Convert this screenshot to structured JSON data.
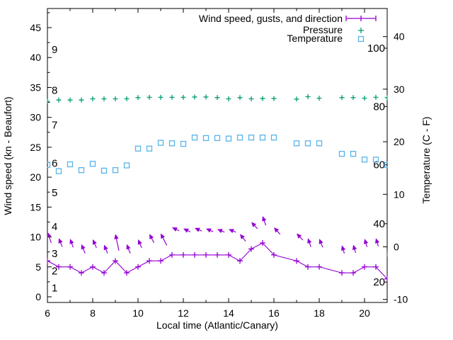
{
  "page": {
    "background": "#ffffff"
  },
  "chart_data": {
    "type": "line",
    "title": "",
    "x_label": "Local time (Atlantic/Canary)",
    "y_left_label": "Wind speed (kn - Beaufort)",
    "y_right_label": "Temperature (C - F)",
    "legend": {
      "wind": "Wind speed, gusts, and direction",
      "pressure": "Pressure",
      "temperature": "Temperature"
    },
    "legend_position": "top-right-inside",
    "grid": false,
    "colors": {
      "wind": "#9400D3",
      "pressure": "#009E73",
      "temperature": "#56B4E9",
      "axis": "#000000"
    },
    "x_range": [
      6,
      21
    ],
    "x_ticks_major": [
      6,
      8,
      10,
      12,
      14,
      16,
      18,
      20
    ],
    "x_ticks_minor": [
      7,
      9,
      11,
      13,
      15,
      17,
      19,
      21
    ],
    "y_left_range": [
      -1,
      48.2
    ],
    "y_left_ticks_major": [
      0,
      5,
      10,
      15,
      20,
      25,
      30,
      35,
      40,
      45
    ],
    "y_left_minor_step": 2.5,
    "y_right_ticks_c": [
      -10,
      0,
      10,
      20,
      30,
      40
    ],
    "beaufort_labels": [
      {
        "label": "1",
        "kn": 1.5
      },
      {
        "label": "2",
        "kn": 4.3
      },
      {
        "label": "3",
        "kn": 7.2
      },
      {
        "label": "4",
        "kn": 11.7
      },
      {
        "label": "5",
        "kn": 17.4
      },
      {
        "label": "6",
        "kn": 22.3
      },
      {
        "label": "7",
        "kn": 28.7
      },
      {
        "label": "8",
        "kn": 34.5
      },
      {
        "label": "9",
        "kn": 41.3
      }
    ],
    "fahrenheit_labels": [
      {
        "label": "100",
        "c": 37.8
      },
      {
        "label": "80",
        "c": 26.7
      },
      {
        "label": "60",
        "c": 15.6
      },
      {
        "label": "40",
        "c": 4.4
      },
      {
        "label": "20",
        "c": -6.7
      }
    ],
    "x": [
      6,
      6.5,
      7,
      7.5,
      8,
      8.5,
      9,
      9.5,
      10,
      10.5,
      11,
      11.5,
      12,
      12.5,
      13,
      13.5,
      14,
      14.5,
      15,
      15.5,
      16,
      16.5,
      17,
      17.5,
      18,
      18.5,
      19,
      19.5,
      20,
      20.5,
      21
    ],
    "series": [
      {
        "name": "wind_speed_kn",
        "values": [
          6,
          5,
          5,
          4,
          5,
          4,
          6,
          4,
          5,
          6,
          6,
          7,
          7,
          7,
          7,
          7,
          7,
          6,
          8,
          9,
          7,
          null,
          6,
          5,
          5,
          null,
          4,
          4,
          5,
          5,
          3
        ]
      },
      {
        "name": "gusts_kn",
        "values": [
          10.8,
          9.8,
          9.7,
          8.8,
          9.6,
          8.7,
          10.5,
          8.8,
          9.6,
          10.5,
          10.6,
          11.6,
          11.4,
          11.5,
          11.4,
          11.3,
          11.3,
          10.5,
          12.5,
          13.5,
          11.6,
          null,
          10.6,
          9.8,
          9.7,
          null,
          8.6,
          8.7,
          9.7,
          9.8,
          7.6
        ]
      },
      {
        "name": "wind_dir_arrow_angle_deg",
        "values": [
          110,
          112,
          110,
          112,
          114,
          112,
          102,
          111,
          113,
          118,
          117,
          155,
          155,
          157,
          157,
          158,
          158,
          128,
          133,
          109,
          132,
          null,
          133,
          109,
          112,
          null,
          107,
          107,
          107,
          107,
          112
        ]
      },
      {
        "name": "gust_arrow_len_px",
        "values": [
          16,
          13,
          13,
          14,
          13,
          13,
          24,
          14,
          13,
          14,
          19,
          11,
          11,
          11,
          11,
          11,
          11,
          13,
          13,
          14,
          13,
          null,
          13,
          13,
          13,
          null,
          12,
          12,
          12,
          12,
          13
        ]
      },
      {
        "name": "pressure_plot_units",
        "values": [
          32.7,
          32.9,
          32.9,
          32.9,
          33.1,
          33.1,
          33.1,
          33.1,
          33.3,
          33.35,
          33.35,
          33.35,
          33.35,
          33.4,
          33.4,
          33.3,
          33.1,
          33.3,
          33.1,
          33.15,
          33.15,
          null,
          33.05,
          33.45,
          33.2,
          null,
          33.3,
          33.3,
          33.2,
          33.35,
          33.3
        ]
      },
      {
        "name": "temperature_c",
        "values": [
          15.6,
          14.4,
          15.7,
          14.6,
          15.8,
          14.5,
          14.6,
          15.5,
          18.7,
          18.7,
          19.8,
          19.7,
          19.6,
          20.8,
          20.7,
          20.7,
          20.6,
          20.8,
          20.8,
          20.8,
          20.8,
          null,
          19.7,
          19.7,
          19.7,
          null,
          17.7,
          17.7,
          16.6,
          16.6,
          15.6
        ]
      }
    ]
  }
}
